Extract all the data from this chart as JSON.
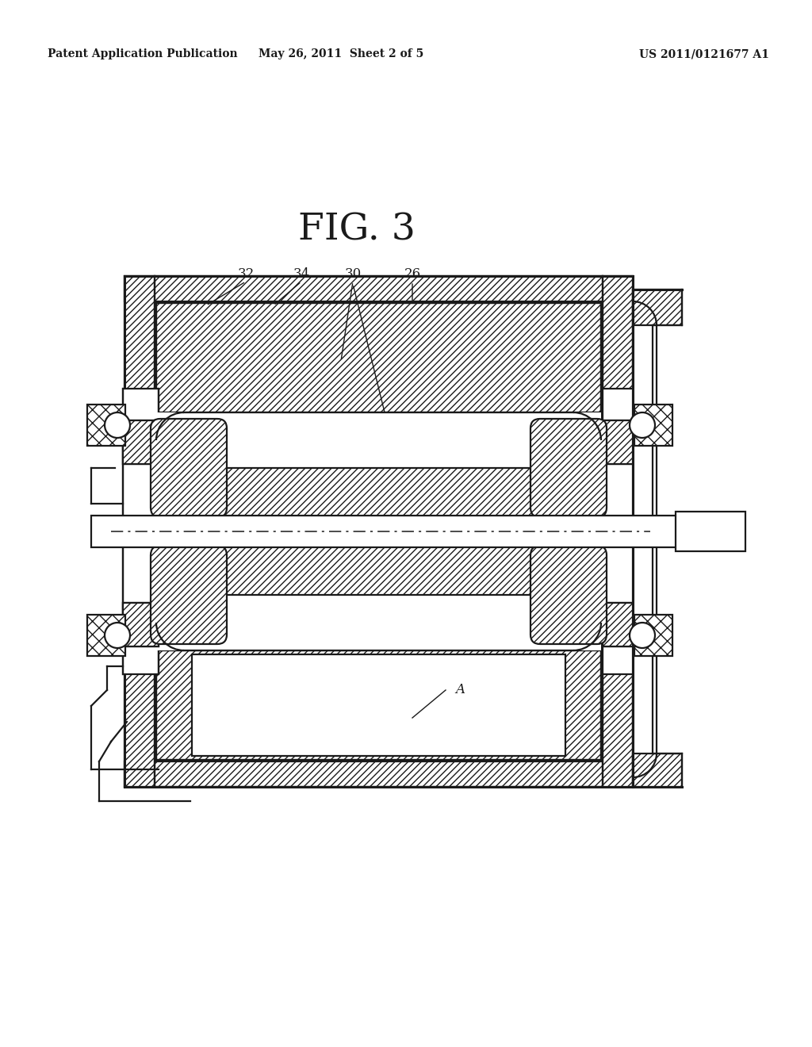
{
  "bg_color": "#ffffff",
  "line_color": "#1a1a1a",
  "header_left": "Patent Application Publication",
  "header_center": "May 26, 2011  Sheet 2 of 5",
  "header_right": "US 2011/0121677 A1",
  "fig_label": "FIG. 3",
  "ref_nums": [
    "32",
    "34",
    "30",
    "26"
  ],
  "ref_label_A": "A"
}
